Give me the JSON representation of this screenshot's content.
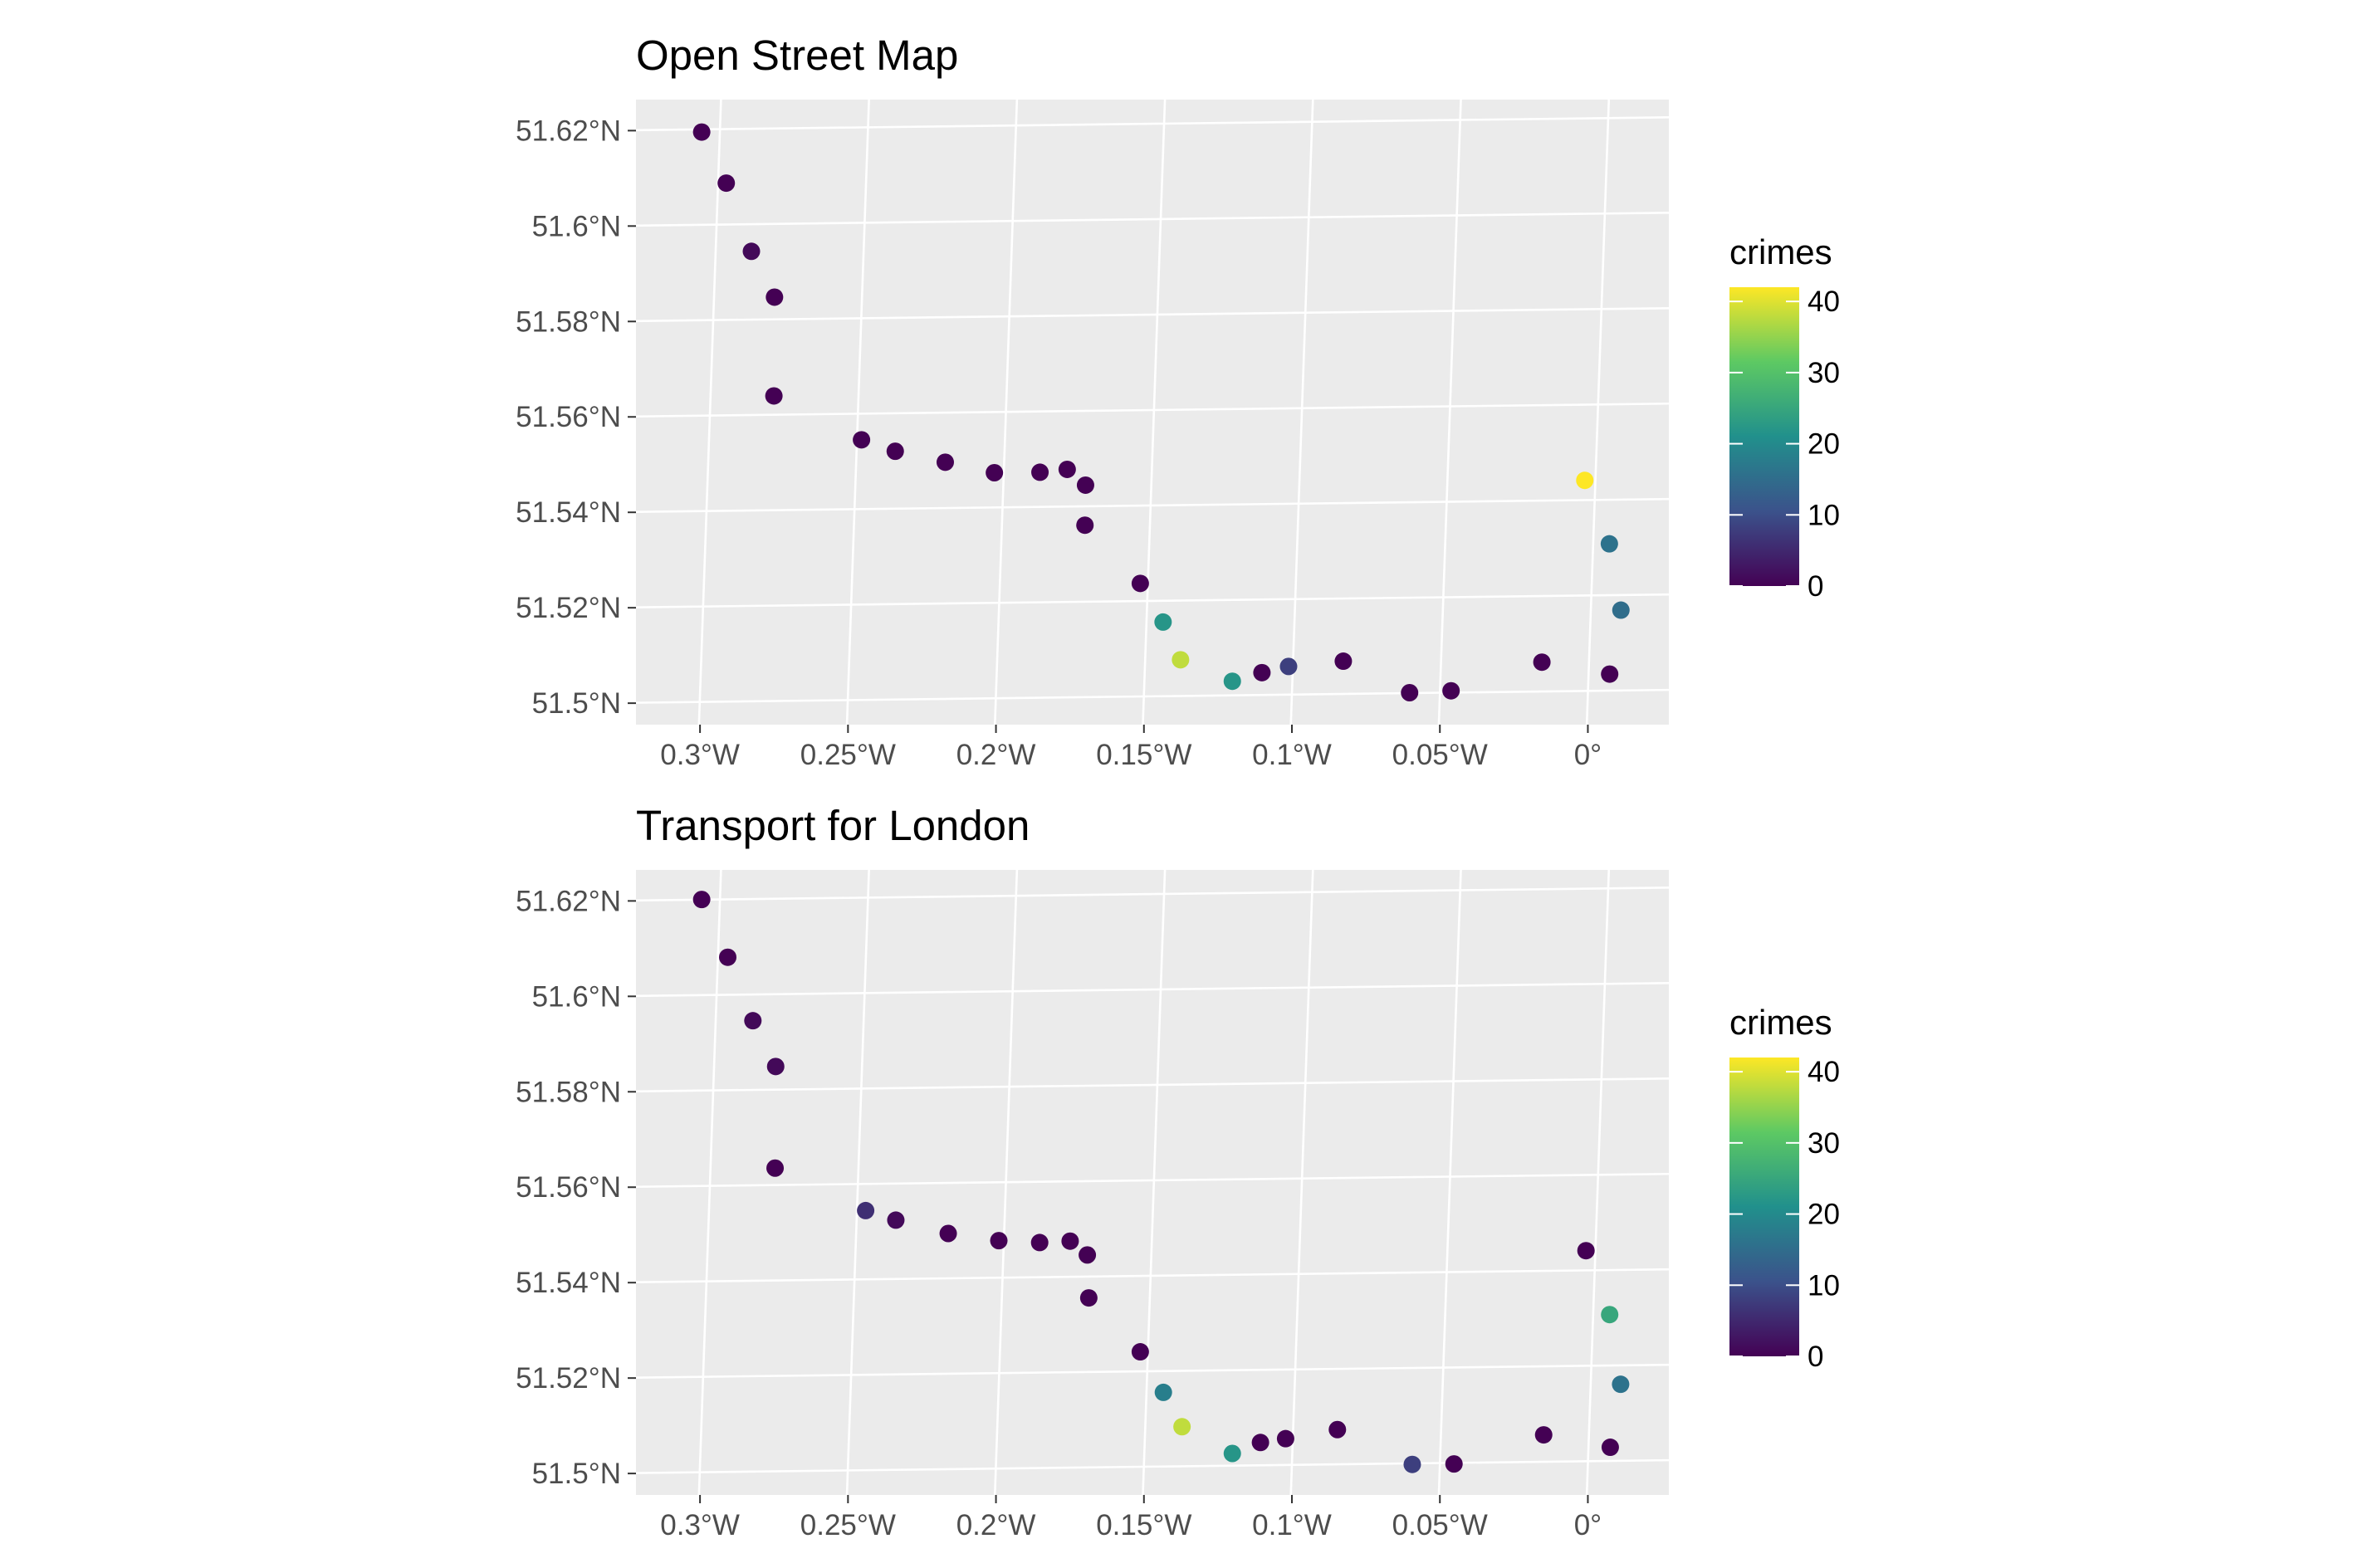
{
  "chart_data": [
    {
      "type": "scatter",
      "title": "Open Street Map",
      "x_ticks": [
        {
          "value": -0.3,
          "label": "0.3°W"
        },
        {
          "value": -0.25,
          "label": "0.25°W"
        },
        {
          "value": -0.2,
          "label": "0.2°W"
        },
        {
          "value": -0.15,
          "label": "0.15°W"
        },
        {
          "value": -0.1,
          "label": "0.1°W"
        },
        {
          "value": -0.05,
          "label": "0.05°W"
        },
        {
          "value": 0.0,
          "label": "0°"
        }
      ],
      "y_ticks": [
        {
          "value": 51.62,
          "label": "51.62°N"
        },
        {
          "value": 51.6,
          "label": "51.6°N"
        },
        {
          "value": 51.58,
          "label": "51.58°N"
        },
        {
          "value": 51.56,
          "label": "51.56°N"
        },
        {
          "value": 51.54,
          "label": "51.54°N"
        },
        {
          "value": 51.52,
          "label": "51.52°N"
        },
        {
          "value": 51.5,
          "label": "51.5°N"
        }
      ],
      "xlim": [
        -0.325,
        0.024
      ],
      "ylim": [
        51.4955,
        51.6265
      ],
      "grid": true,
      "legend": {
        "title": "crimes",
        "placement": "right",
        "range": [
          0,
          42
        ],
        "ticks": [
          {
            "value": 0,
            "label": "0"
          },
          {
            "value": 10,
            "label": "10"
          },
          {
            "value": 20,
            "label": "20"
          },
          {
            "value": 30,
            "label": "30"
          },
          {
            "value": 40,
            "label": "40"
          }
        ],
        "colormap": [
          "#440154",
          "#3b528b",
          "#21908c",
          "#5dc963",
          "#fde725"
        ]
      },
      "points": [
        {
          "x": -0.3028,
          "y": 51.6197,
          "crimes": 0
        },
        {
          "x": -0.2945,
          "y": 51.609,
          "crimes": 0
        },
        {
          "x": -0.286,
          "y": 51.5947,
          "crimes": 1
        },
        {
          "x": -0.2782,
          "y": 51.5851,
          "crimes": 0
        },
        {
          "x": -0.2784,
          "y": 51.5644,
          "crimes": 0
        },
        {
          "x": -0.2488,
          "y": 51.5552,
          "crimes": 0
        },
        {
          "x": -0.2374,
          "y": 51.5528,
          "crimes": 0
        },
        {
          "x": -0.2205,
          "y": 51.5505,
          "crimes": 0
        },
        {
          "x": -0.2039,
          "y": 51.5483,
          "crimes": 0
        },
        {
          "x": -0.1885,
          "y": 51.5484,
          "crimes": 0
        },
        {
          "x": -0.1793,
          "y": 51.549,
          "crimes": 0
        },
        {
          "x": -0.1731,
          "y": 51.5457,
          "crimes": 0
        },
        {
          "x": -0.1733,
          "y": 51.5373,
          "crimes": 0
        },
        {
          "x": -0.1546,
          "y": 51.5251,
          "crimes": 0
        },
        {
          "x": -0.1469,
          "y": 51.517,
          "crimes": 22
        },
        {
          "x": -0.141,
          "y": 51.5091,
          "crimes": 38
        },
        {
          "x": -0.1235,
          "y": 51.5046,
          "crimes": 22
        },
        {
          "x": -0.1135,
          "y": 51.5064,
          "crimes": 0
        },
        {
          "x": -0.1045,
          "y": 51.5077,
          "crimes": 8
        },
        {
          "x": -0.086,
          "y": 51.5088,
          "crimes": 0
        },
        {
          "x": -0.0636,
          "y": 51.5022,
          "crimes": 0
        },
        {
          "x": -0.0496,
          "y": 51.5026,
          "crimes": 0
        },
        {
          "x": -0.0189,
          "y": 51.5086,
          "crimes": 0
        },
        {
          "x": -0.0044,
          "y": 51.5467,
          "crimes": 42
        },
        {
          "x": 0.0039,
          "y": 51.5334,
          "crimes": 16
        },
        {
          "x": 0.0078,
          "y": 51.5195,
          "crimes": 15
        },
        {
          "x": 0.004,
          "y": 51.5061,
          "crimes": 0
        }
      ]
    },
    {
      "type": "scatter",
      "title": "Transport for London",
      "x_ticks": [
        {
          "value": -0.3,
          "label": "0.3°W"
        },
        {
          "value": -0.25,
          "label": "0.25°W"
        },
        {
          "value": -0.2,
          "label": "0.2°W"
        },
        {
          "value": -0.15,
          "label": "0.15°W"
        },
        {
          "value": -0.1,
          "label": "0.1°W"
        },
        {
          "value": -0.05,
          "label": "0.05°W"
        },
        {
          "value": 0.0,
          "label": "0°"
        }
      ],
      "y_ticks": [
        {
          "value": 51.62,
          "label": "51.62°N"
        },
        {
          "value": 51.6,
          "label": "51.6°N"
        },
        {
          "value": 51.58,
          "label": "51.58°N"
        },
        {
          "value": 51.56,
          "label": "51.56°N"
        },
        {
          "value": 51.54,
          "label": "51.54°N"
        },
        {
          "value": 51.52,
          "label": "51.52°N"
        },
        {
          "value": 51.5,
          "label": "51.5°N"
        }
      ],
      "xlim": [
        -0.325,
        0.024
      ],
      "ylim": [
        51.4955,
        51.6265
      ],
      "grid": true,
      "legend": {
        "title": "crimes",
        "placement": "right",
        "range": [
          0,
          42
        ],
        "ticks": [
          {
            "value": 0,
            "label": "0"
          },
          {
            "value": 10,
            "label": "10"
          },
          {
            "value": 20,
            "label": "20"
          },
          {
            "value": 30,
            "label": "30"
          },
          {
            "value": 40,
            "label": "40"
          }
        ],
        "colormap": [
          "#440154",
          "#3b528b",
          "#21908c",
          "#5dc963",
          "#fde725"
        ]
      },
      "points": [
        {
          "x": -0.3028,
          "y": 51.6203,
          "crimes": 0
        },
        {
          "x": -0.294,
          "y": 51.6082,
          "crimes": 0
        },
        {
          "x": -0.2855,
          "y": 51.5949,
          "crimes": 1
        },
        {
          "x": -0.2778,
          "y": 51.5853,
          "crimes": 1
        },
        {
          "x": -0.278,
          "y": 51.564,
          "crimes": 0
        },
        {
          "x": -0.2474,
          "y": 51.5551,
          "crimes": 6
        },
        {
          "x": -0.2372,
          "y": 51.5531,
          "crimes": 1
        },
        {
          "x": -0.2195,
          "y": 51.5503,
          "crimes": 0
        },
        {
          "x": -0.2024,
          "y": 51.5488,
          "crimes": 0
        },
        {
          "x": -0.1886,
          "y": 51.5484,
          "crimes": 0
        },
        {
          "x": -0.1783,
          "y": 51.5487,
          "crimes": 0
        },
        {
          "x": -0.1725,
          "y": 51.5458,
          "crimes": 0
        },
        {
          "x": -0.172,
          "y": 51.5368,
          "crimes": 0
        },
        {
          "x": -0.1546,
          "y": 51.5255,
          "crimes": 0
        },
        {
          "x": -0.1468,
          "y": 51.517,
          "crimes": 18
        },
        {
          "x": -0.1405,
          "y": 51.5098,
          "crimes": 38
        },
        {
          "x": -0.1235,
          "y": 51.5042,
          "crimes": 22
        },
        {
          "x": -0.114,
          "y": 51.5065,
          "crimes": 0
        },
        {
          "x": -0.1055,
          "y": 51.5073,
          "crimes": 0
        },
        {
          "x": -0.088,
          "y": 51.5092,
          "crimes": 0
        },
        {
          "x": -0.0627,
          "y": 51.5019,
          "crimes": 8
        },
        {
          "x": -0.0486,
          "y": 51.502,
          "crimes": 0
        },
        {
          "x": -0.0183,
          "y": 51.5081,
          "crimes": 0
        },
        {
          "x": -0.004,
          "y": 51.5467,
          "crimes": 0
        },
        {
          "x": 0.004,
          "y": 51.5333,
          "crimes": 25
        },
        {
          "x": 0.0077,
          "y": 51.5187,
          "crimes": 16
        },
        {
          "x": 0.0042,
          "y": 51.5055,
          "crimes": 0
        }
      ]
    }
  ]
}
